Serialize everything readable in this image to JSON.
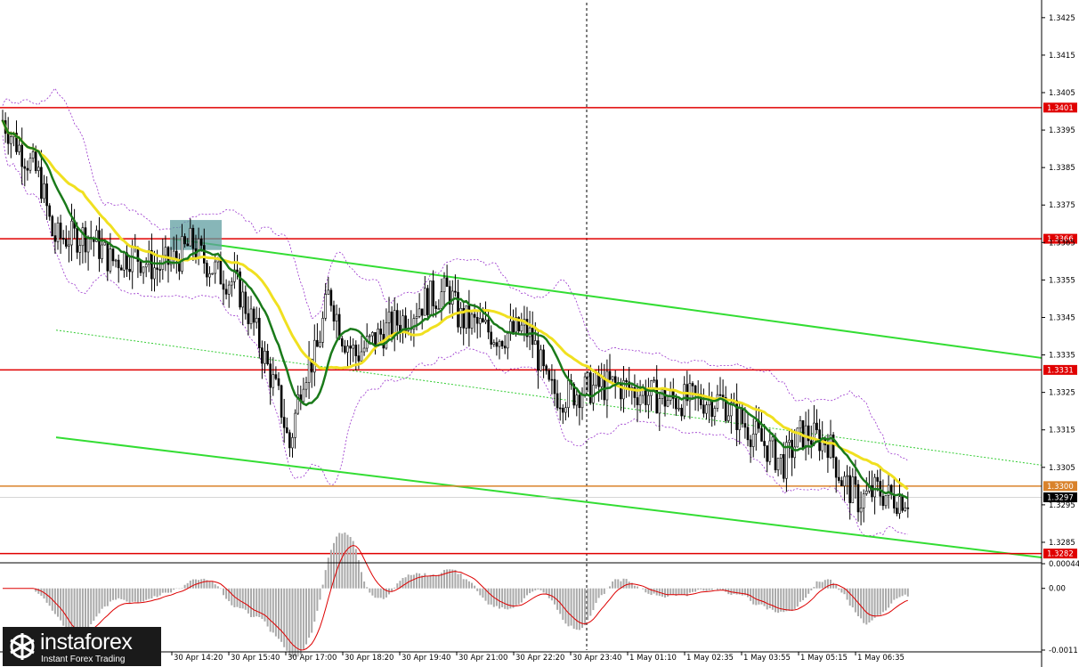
{
  "chart_data": {
    "type": "candlestick",
    "main_panel": {
      "y_ticks": [
        "1.3425",
        "1.3415",
        "1.3405",
        "1.3395",
        "1.3385",
        "1.3375",
        "1.3365",
        "1.3355",
        "1.3345",
        "1.3335",
        "1.3325",
        "1.3315",
        "1.3305",
        "1.3295",
        "1.3285"
      ],
      "y_range": [
        1.328,
        1.3429
      ],
      "horizontal_levels": [
        {
          "label": "1.3401",
          "value": 1.3401,
          "color": "#e00000"
        },
        {
          "label": "1.3366",
          "value": 1.3366,
          "color": "#e00000"
        },
        {
          "label": "1.3331",
          "value": 1.3331,
          "color": "#e00000"
        },
        {
          "label": "1.3300",
          "value": 1.33,
          "color": "#d9822b"
        },
        {
          "label": "1.3282",
          "value": 1.3282,
          "color": "#e00000"
        }
      ],
      "current_price": "1.3297",
      "current_price_value": 1.3297,
      "trend_channel": [
        {
          "from": [
            "30 Apr 14:20",
            1.3366
          ],
          "to": [
            "1 May 06:35",
            1.3341
          ],
          "color": "#33dd33"
        },
        {
          "from": [
            "30 Apr 12:50",
            1.3313
          ],
          "to": [
            "1 May 06:35",
            1.3287
          ],
          "color": "#33dd33"
        }
      ],
      "entry_zone": {
        "time": "30 Apr 14:20",
        "price_from": 1.3363,
        "price_to": 1.3371,
        "color": "#5f9ea0"
      },
      "series": [
        {
          "name": "MA yellow",
          "color": "#f0e020"
        },
        {
          "name": "MA green",
          "color": "#1a7a1a"
        }
      ]
    },
    "macd_panel": {
      "y_ticks": [
        "0.00044",
        "0.00",
        "-0.0011"
      ],
      "y_range": [
        -0.0011,
        0.00044
      ]
    },
    "x_tick_labels": [
      "30 Apr 14:20",
      "30 Apr 15:40",
      "30 Apr 17:00",
      "30 Apr 18:20",
      "30 Apr 19:40",
      "30 Apr 21:00",
      "30 Apr 22:20",
      "30 Apr 23:40",
      "1 May 01:10",
      "1 May 02:35",
      "1 May 03:55",
      "1 May 05:15",
      "1 May 06:35"
    ]
  },
  "watermark": {
    "name": "instaforex",
    "tagline": "Instant Forex Trading"
  },
  "colors": {
    "bull_candle": "#000000",
    "bear_candle": "#000000",
    "bollinger": "#9933cc",
    "macd_hist": "#aaaaaa",
    "macd_signal": "#dd0000"
  }
}
